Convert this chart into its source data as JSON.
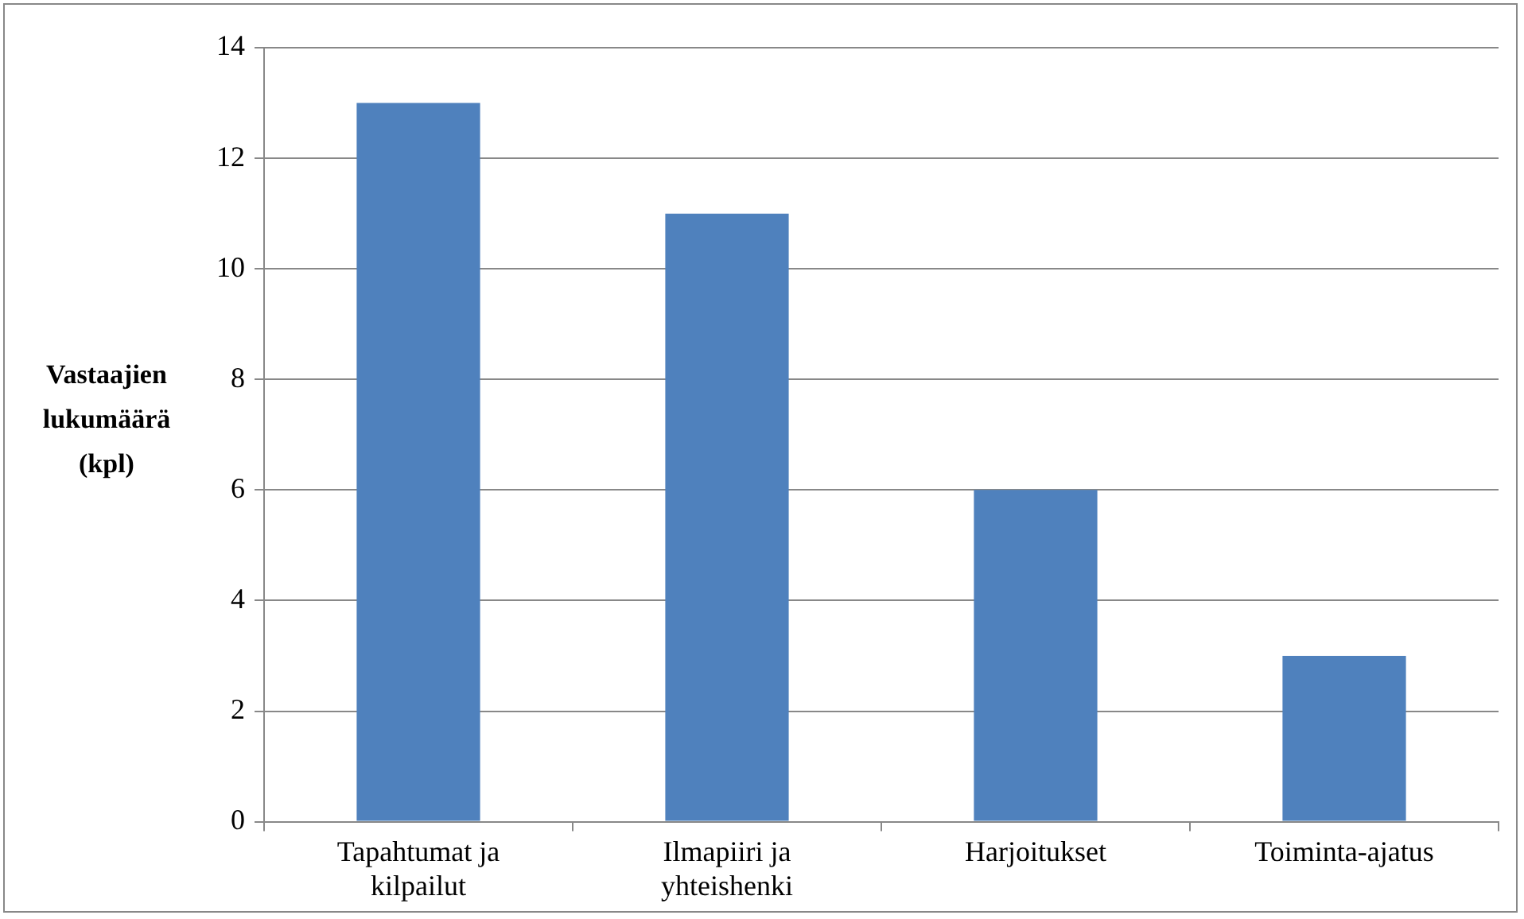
{
  "chart_data": {
    "type": "bar",
    "ylabel": "Vastaajien lukumäärä (kpl)",
    "categories": [
      "Tapahtumat ja kilpailut",
      "Ilmapiiri ja yhteishenki",
      "Harjoitukset",
      "Toiminta-ajatus"
    ],
    "values": [
      13,
      11,
      6,
      3
    ],
    "color": "#4f81bd",
    "ylim": [
      0,
      14
    ],
    "yticks": [
      0,
      2,
      4,
      6,
      8,
      10,
      12,
      14
    ],
    "grid": "y",
    "legend": false
  }
}
